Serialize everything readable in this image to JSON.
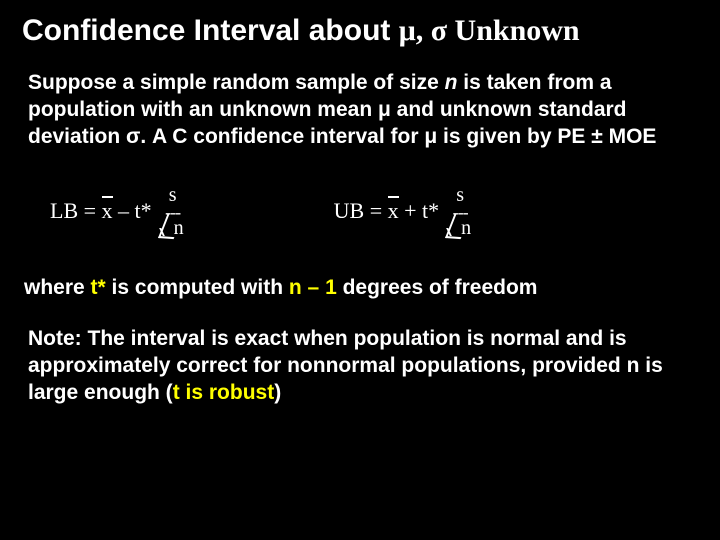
{
  "title": {
    "part1": "Confidence Interval about ",
    "part2": "μ, σ Unknown"
  },
  "intro": {
    "l1a": "Suppose a simple random sample of size ",
    "l1b": "n",
    "l1c": " is taken from a population with an unknown mean μ and unknown standard deviation σ.  A C confidence interval for μ is given by PE ± MOE"
  },
  "formulas": {
    "lb": {
      "label": "LB  = ",
      "x": "x",
      "op": " – t*",
      "num": "s",
      "dash": "---",
      "den": "n"
    },
    "ub": {
      "label": "UB  = ",
      "x": "x",
      "op": " + t*",
      "num": "s",
      "dash": "---",
      "den": "n"
    }
  },
  "where": {
    "a": "where ",
    "b": "t*",
    "c": " is computed with ",
    "d": "n – 1",
    "e": " degrees of freedom"
  },
  "note": {
    "a": "Note:  The interval is exact when population is normal and is approximately correct for nonnormal populations, provided n is large enough (",
    "b": "t is robust",
    "c": ")"
  },
  "colors": {
    "background": "#000000",
    "text": "#ffffff",
    "highlight": "#ffff00"
  },
  "fonts": {
    "title_size_pt": 30,
    "body_size_pt": 21,
    "formula_size_pt": 22,
    "body_family": "Arial",
    "serif_family": "Times New Roman"
  }
}
